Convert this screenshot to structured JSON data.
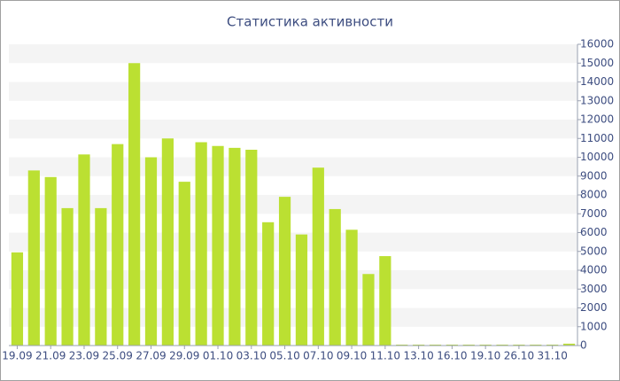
{
  "chart_data": {
    "type": "bar",
    "title": "Статистика активности",
    "categories": [
      "19.09",
      null,
      "21.09",
      null,
      "23.09",
      null,
      "25.09",
      null,
      "27.09",
      null,
      "29.09",
      null,
      "01.10",
      null,
      "03.10",
      null,
      "05.10",
      null,
      "07.10",
      null,
      "09.10",
      null,
      "11.10",
      null,
      "13.10",
      null,
      "16.10",
      null,
      "19.10",
      null,
      "26.10",
      null,
      "31.10",
      null
    ],
    "values": [
      4950,
      9300,
      8950,
      7300,
      10150,
      7300,
      10700,
      15000,
      10000,
      11000,
      8700,
      10800,
      10600,
      10500,
      10400,
      6550,
      7900,
      5900,
      9450,
      7250,
      6150,
      3800,
      4750,
      50,
      50,
      50,
      50,
      50,
      50,
      50,
      50,
      50,
      50,
      100
    ],
    "color": "#bbe032",
    "ylim": [
      0,
      16000
    ],
    "yticks": [
      0,
      1000,
      2000,
      3000,
      4000,
      5000,
      6000,
      7000,
      8000,
      9000,
      10000,
      11000,
      12000,
      13000,
      14000,
      15000,
      16000
    ],
    "grid": true
  }
}
